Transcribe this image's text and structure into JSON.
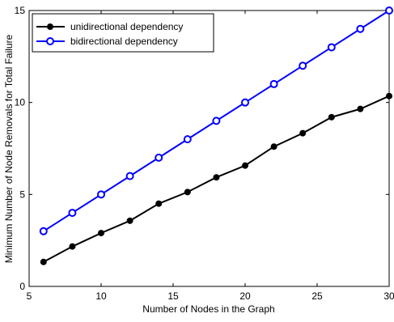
{
  "chart_data": {
    "type": "line",
    "title": "",
    "xlabel": "Number of Nodes in the Graph",
    "ylabel": "Minimum Number of Node Removals for Total Failure",
    "xlim": [
      5,
      30
    ],
    "ylim": [
      0,
      15
    ],
    "xticks": [
      5,
      10,
      15,
      20,
      25,
      30
    ],
    "yticks": [
      0,
      5,
      10,
      15
    ],
    "grid": false,
    "legend_position": "top-left",
    "x": [
      6,
      8,
      10,
      12,
      14,
      16,
      18,
      20,
      22,
      24,
      26,
      28,
      30
    ],
    "series": [
      {
        "name": "unidirectional dependency",
        "color": "#000000",
        "marker": "filled-circle",
        "values": [
          1.33,
          2.17,
          2.9,
          3.57,
          4.5,
          5.13,
          5.93,
          6.57,
          7.6,
          8.33,
          9.2,
          9.65,
          10.35
        ]
      },
      {
        "name": "bidirectional dependency",
        "color": "#0000ff",
        "marker": "open-circle",
        "values": [
          3,
          4,
          5,
          6,
          7,
          8,
          9,
          10,
          11,
          12,
          13,
          14,
          15
        ]
      }
    ]
  }
}
